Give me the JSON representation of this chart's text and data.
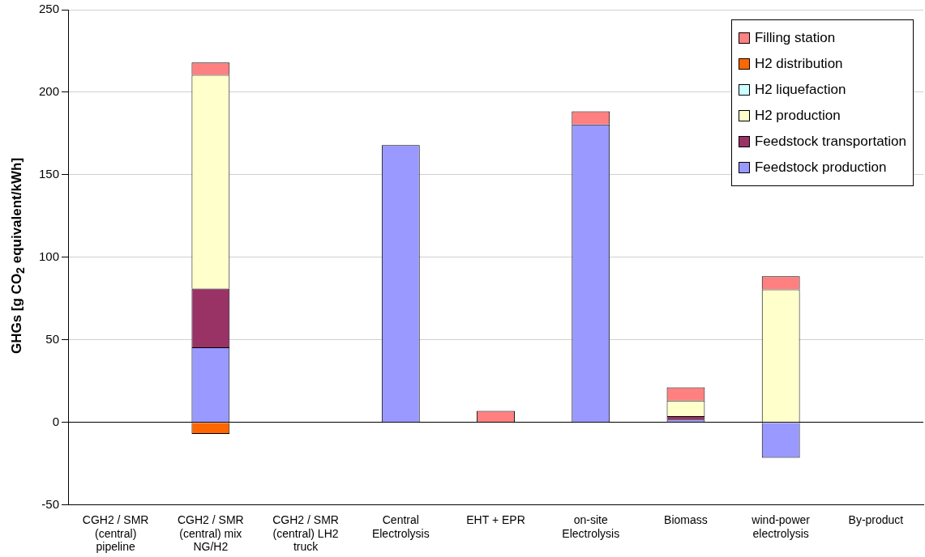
{
  "chart_data": {
    "type": "bar",
    "stacked": true,
    "ylabel": "GHGs [g CO$_{2}$ equivalent/kWh]",
    "categories": [
      "CGH2 / SMR (central) pipeline",
      "CGH2 / SMR (central) mix NG/H2",
      "CGH2 / SMR (central) LH2 truck",
      "Central Electrolysis",
      "EHT + EPR",
      "on-site Electrolysis",
      "Biomass",
      "wind-power electrolysis",
      "By-product"
    ],
    "series": [
      {
        "name": "Feedstock production",
        "color": "#9999ff",
        "values": [
          0,
          45.5,
          0,
          168,
          0,
          180.5,
          1.7,
          -21.5,
          0
        ]
      },
      {
        "name": "Feedstock transportation",
        "color": "#993366",
        "values": [
          0,
          35.5,
          0,
          0,
          0,
          0,
          2,
          0,
          0
        ]
      },
      {
        "name": "H2 production",
        "color": "#ffffcc",
        "values": [
          0,
          129.5,
          0,
          0,
          0,
          0,
          9.5,
          80.5,
          0
        ]
      },
      {
        "name": "H2 liquefaction",
        "color": "#ccffff",
        "values": [
          0,
          0,
          0,
          0,
          0,
          0,
          0,
          0,
          0
        ]
      },
      {
        "name": "H2 distribution",
        "color": "#ff6600",
        "values": [
          0,
          -7,
          0,
          0,
          0,
          0,
          0,
          0,
          0
        ]
      },
      {
        "name": "Filling station",
        "color": "#ff8080",
        "values": [
          0,
          7.5,
          0,
          0,
          7,
          8,
          8,
          8,
          0
        ]
      }
    ],
    "ylim": [
      -50,
      250
    ],
    "yticks": [
      -50,
      0,
      50,
      100,
      150,
      200,
      250
    ],
    "grid": "y",
    "legend": "top right"
  }
}
